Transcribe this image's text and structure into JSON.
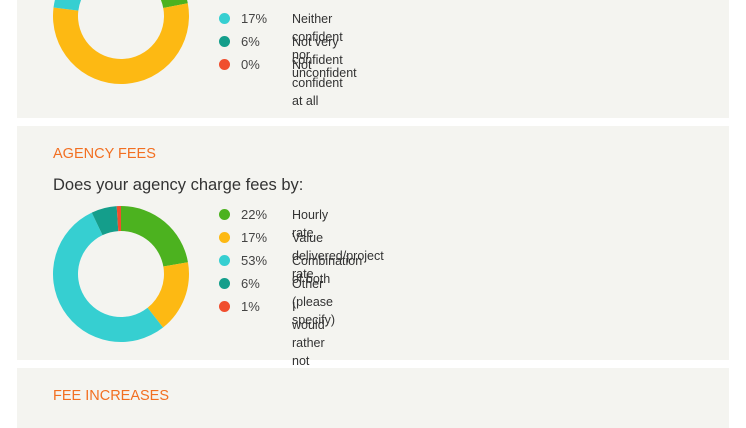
{
  "top_section": {
    "legend": [
      {
        "pct": "17%",
        "label": "Neither confident nor unconfident",
        "color": "#36cfd1"
      },
      {
        "pct": "6%",
        "label": "Not very confident",
        "color": "#149e8b"
      },
      {
        "pct": "0%",
        "label": "Not confident at all",
        "color": "#f04e2e"
      }
    ]
  },
  "agency_fees": {
    "title": "AGENCY FEES",
    "question": "Does your agency charge fees by:",
    "legend": [
      {
        "pct": "22%",
        "label": "Hourly rate",
        "color": "#4cb21f"
      },
      {
        "pct": "17%",
        "label": "Value delivered/project rate",
        "color": "#fdb913"
      },
      {
        "pct": "53%",
        "label": "Combination of both",
        "color": "#36cfd1"
      },
      {
        "pct": "6%",
        "label": "Other (please specify)",
        "color": "#149e8b"
      },
      {
        "pct": "1%",
        "label": "I would rather not say",
        "color": "#f04e2e"
      }
    ]
  },
  "fee_increases": {
    "title": "FEE INCREASES"
  },
  "chart_data": [
    {
      "type": "pie",
      "categories": [
        "",
        "",
        "Neither confident nor unconfident",
        "Not very confident",
        "Not confident at all"
      ],
      "values": [
        22,
        55,
        17,
        6,
        0
      ],
      "colors": [
        "#4cb21f",
        "#fdb913",
        "#36cfd1",
        "#149e8b",
        "#f04e2e"
      ]
    },
    {
      "type": "pie",
      "title": "Does your agency charge fees by:",
      "categories": [
        "Hourly rate",
        "Value delivered/project rate",
        "Combination of both",
        "Other (please specify)",
        "I would rather not say"
      ],
      "values": [
        22,
        17,
        53,
        6,
        1
      ],
      "colors": [
        "#4cb21f",
        "#fdb913",
        "#36cfd1",
        "#149e8b",
        "#f04e2e"
      ]
    }
  ]
}
